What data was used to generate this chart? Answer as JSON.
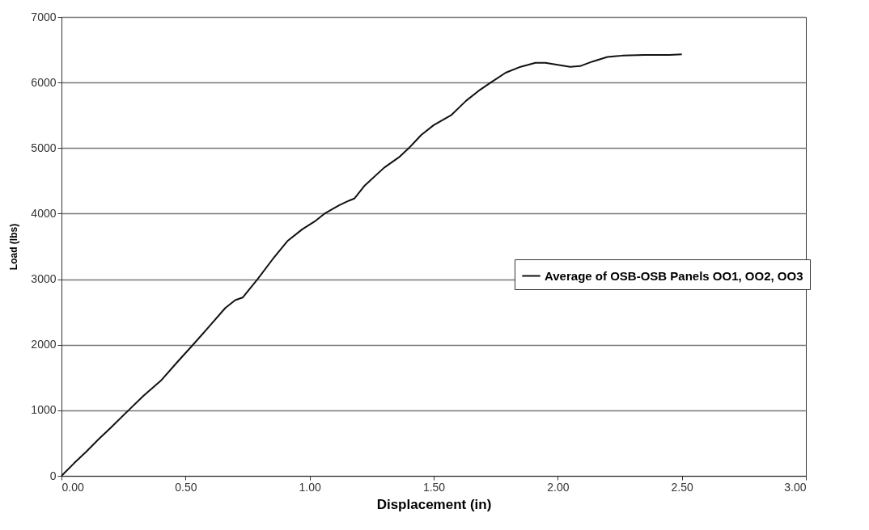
{
  "chart_data": {
    "type": "line",
    "xlabel": "Displacement (in)",
    "ylabel": "Load (lbs)",
    "x": [
      0,
      0.05,
      0.1,
      0.15,
      0.2,
      0.27,
      0.33,
      0.4,
      0.47,
      0.53,
      0.6,
      0.66,
      0.7,
      0.73,
      0.79,
      0.85,
      0.91,
      0.97,
      1.02,
      1.06,
      1.12,
      1.16,
      1.18,
      1.22,
      1.3,
      1.36,
      1.4,
      1.45,
      1.5,
      1.57,
      1.63,
      1.68,
      1.73,
      1.79,
      1.85,
      1.91,
      1.95,
      2.0,
      2.05,
      2.09,
      2.14,
      2.2,
      2.26,
      2.35,
      2.45,
      2.5
    ],
    "series": [
      {
        "name": "Average of OSB-OSB Panels OO1, OO2, OO3",
        "color": "#111111",
        "values": [
          0,
          190,
          370,
          560,
          740,
          1000,
          1220,
          1450,
          1750,
          2000,
          2300,
          2560,
          2680,
          2720,
          3000,
          3300,
          3580,
          3760,
          3880,
          4000,
          4130,
          4200,
          4230,
          4420,
          4700,
          4860,
          5000,
          5200,
          5350,
          5500,
          5720,
          5870,
          6000,
          6150,
          6240,
          6300,
          6300,
          6270,
          6240,
          6250,
          6320,
          6390,
          6410,
          6420,
          6420,
          6430
        ]
      }
    ],
    "xlim": [
      0,
      3
    ],
    "ylim": [
      0,
      7000
    ],
    "xticks": [
      {
        "value": 0,
        "label": "0.00"
      },
      {
        "value": 0.5,
        "label": "0.50"
      },
      {
        "value": 1,
        "label": "1.00"
      },
      {
        "value": 1.5,
        "label": "1.50"
      },
      {
        "value": 2,
        "label": "2.00"
      },
      {
        "value": 2.5,
        "label": "2.50"
      },
      {
        "value": 3,
        "label": "3.00"
      }
    ],
    "yticks": [
      0,
      1000,
      2000,
      3000,
      4000,
      5000,
      6000,
      7000
    ],
    "grid": "y",
    "legend": "right",
    "line_style": "solid"
  }
}
